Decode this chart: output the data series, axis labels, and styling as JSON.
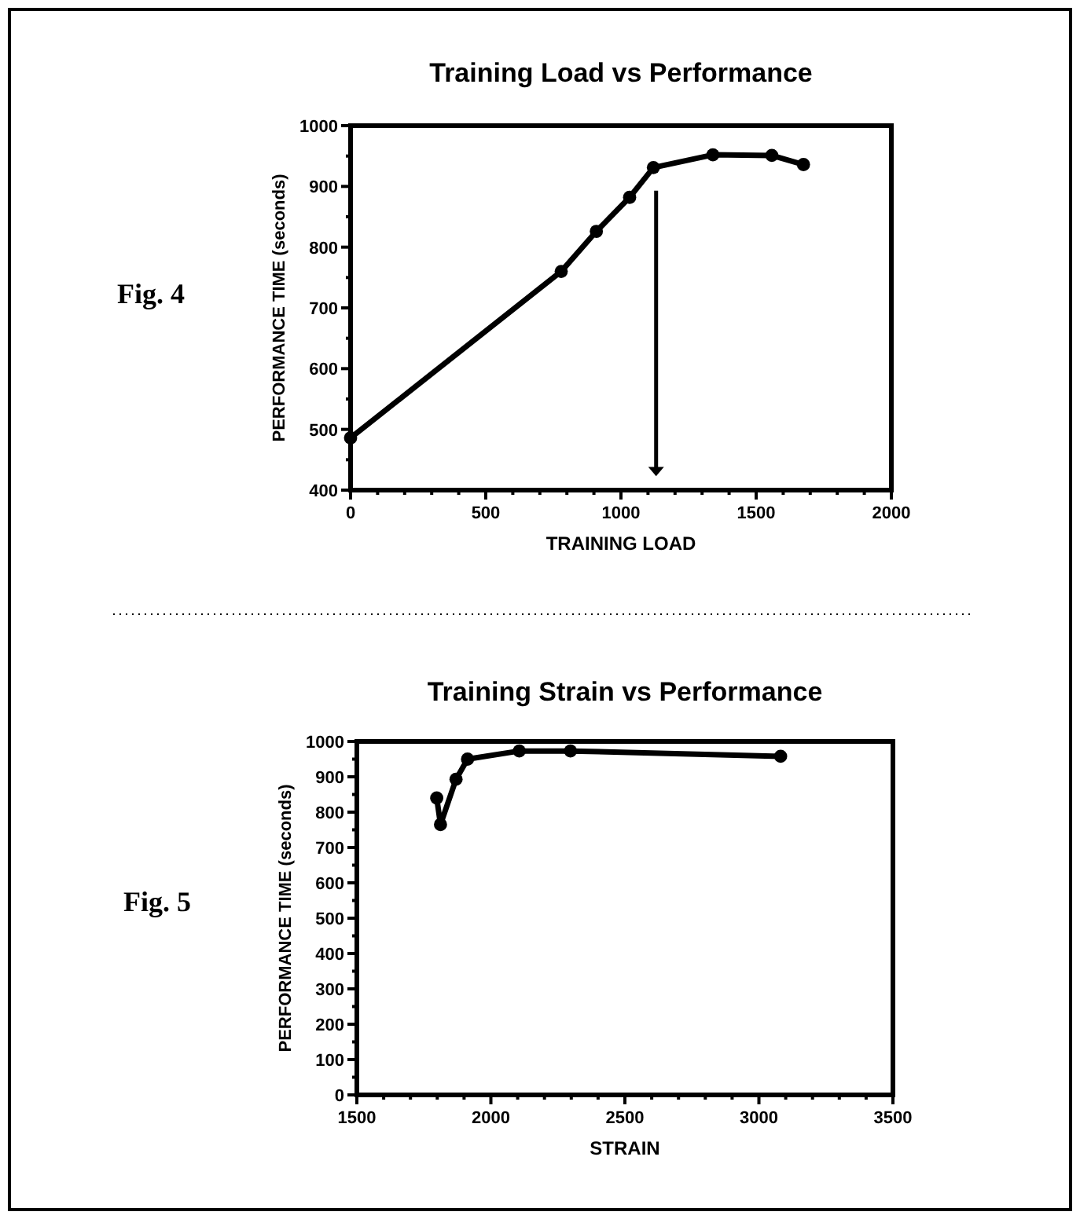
{
  "chart_data": [
    {
      "type": "line",
      "title": "Training Load vs Performance",
      "xlabel": "TRAINING LOAD",
      "ylabel": "PERFORMANCE TIME (seconds)",
      "annotations": [
        "Fig. 4"
      ],
      "x": [
        0,
        779,
        909,
        1032,
        1120,
        1340,
        1558,
        1675
      ],
      "series": [
        {
          "color": "#000000",
          "values": [
            486,
            760,
            826,
            882,
            931,
            952,
            951,
            936
          ]
        }
      ],
      "xlim": [
        0,
        2000
      ],
      "ylim": [
        400,
        1000
      ],
      "xticks": [
        0,
        {
          "value": 100,
          "label": null
        },
        {
          "value": 200,
          "label": null
        },
        {
          "value": 300,
          "label": null
        },
        {
          "value": 400,
          "label": null
        },
        500,
        {
          "value": 600,
          "label": null
        },
        {
          "value": 700,
          "label": null
        },
        {
          "value": 800,
          "label": null
        },
        {
          "value": 900,
          "label": null
        },
        1000,
        {
          "value": 1100,
          "label": null
        },
        {
          "value": 1200,
          "label": null
        },
        {
          "value": 1300,
          "label": null
        },
        {
          "value": 1400,
          "label": null
        },
        1500,
        {
          "value": 1600,
          "label": null
        },
        {
          "value": 1700,
          "label": null
        },
        {
          "value": 1800,
          "label": null
        },
        {
          "value": 1900,
          "label": null
        },
        2000
      ],
      "yticks": [
        400,
        {
          "value": 450,
          "label": null
        },
        500,
        {
          "value": 550,
          "label": null
        },
        600,
        {
          "value": 650,
          "label": null
        },
        700,
        {
          "value": 750,
          "label": null
        },
        800,
        {
          "value": 850,
          "label": null
        },
        900,
        {
          "value": 950,
          "label": null
        },
        1000
      ],
      "marker": "circle",
      "line_style": "solid"
    },
    {
      "type": "line",
      "title": "Training Strain vs Performance",
      "xlabel": "STRAIN",
      "ylabel": "PERFORMANCE TIME (seconds)",
      "annotations": [
        "Fig. 5"
      ],
      "x": [
        1798,
        1812,
        1870,
        1913,
        2106,
        2297,
        3081
      ],
      "series": [
        {
          "color": "#000000",
          "values": [
            840,
            765,
            893,
            950,
            973,
            973,
            958
          ]
        }
      ],
      "xlim": [
        1500,
        3500
      ],
      "ylim": [
        0,
        1000
      ],
      "xticks": [
        1500,
        {
          "value": 1600,
          "label": null
        },
        {
          "value": 1700,
          "label": null
        },
        {
          "value": 1800,
          "label": null
        },
        {
          "value": 1900,
          "label": null
        },
        2000,
        {
          "value": 2100,
          "label": null
        },
        {
          "value": 2200,
          "label": null
        },
        {
          "value": 2300,
          "label": null
        },
        {
          "value": 2400,
          "label": null
        },
        2500,
        {
          "value": 2600,
          "label": null
        },
        {
          "value": 2700,
          "label": null
        },
        {
          "value": 2800,
          "label": null
        },
        {
          "value": 2900,
          "label": null
        },
        3000,
        {
          "value": 3100,
          "label": null
        },
        {
          "value": 3200,
          "label": null
        },
        {
          "value": 3300,
          "label": null
        },
        {
          "value": 3400,
          "label": null
        },
        3500
      ],
      "yticks": [
        0,
        {
          "value": 50,
          "label": null
        },
        100,
        {
          "value": 150,
          "label": null
        },
        200,
        {
          "value": 250,
          "label": null
        },
        300,
        {
          "value": 350,
          "label": null
        },
        400,
        {
          "value": 450,
          "label": null
        },
        500,
        {
          "value": 550,
          "label": null
        },
        600,
        {
          "value": 650,
          "label": null
        },
        700,
        {
          "value": 750,
          "label": null
        },
        800,
        {
          "value": 850,
          "label": null
        },
        900,
        {
          "value": 950,
          "label": null
        },
        1000
      ],
      "marker": "circle",
      "line_style": "solid"
    }
  ]
}
